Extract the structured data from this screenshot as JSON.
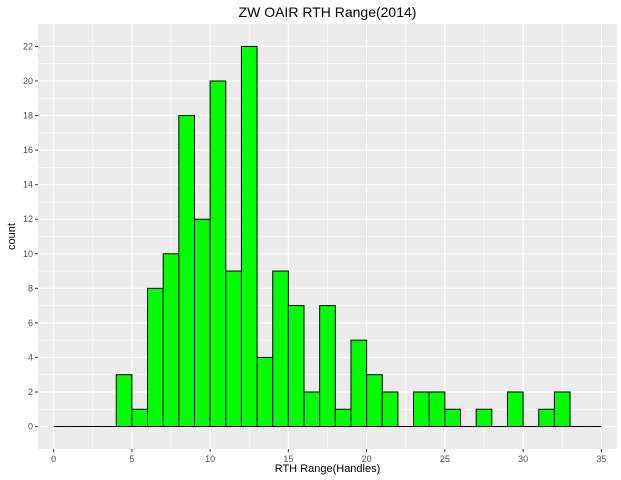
{
  "chart_data": {
    "type": "bar",
    "subtype": "histogram",
    "title": "ZW OAIR RTH Range(2014)",
    "xlabel": "RTH Range(Handles)",
    "ylabel": "count",
    "bin_width": 1,
    "bins": [
      {
        "x": 0,
        "count": 0
      },
      {
        "x": 1,
        "count": 0
      },
      {
        "x": 2,
        "count": 0
      },
      {
        "x": 3,
        "count": 0
      },
      {
        "x": 4,
        "count": 3
      },
      {
        "x": 5,
        "count": 1
      },
      {
        "x": 6,
        "count": 8
      },
      {
        "x": 7,
        "count": 10
      },
      {
        "x": 8,
        "count": 18
      },
      {
        "x": 9,
        "count": 12
      },
      {
        "x": 10,
        "count": 20
      },
      {
        "x": 11,
        "count": 9
      },
      {
        "x": 12,
        "count": 22
      },
      {
        "x": 13,
        "count": 4
      },
      {
        "x": 14,
        "count": 9
      },
      {
        "x": 15,
        "count": 7
      },
      {
        "x": 16,
        "count": 2
      },
      {
        "x": 17,
        "count": 7
      },
      {
        "x": 18,
        "count": 1
      },
      {
        "x": 19,
        "count": 5
      },
      {
        "x": 20,
        "count": 3
      },
      {
        "x": 21,
        "count": 2
      },
      {
        "x": 22,
        "count": 0
      },
      {
        "x": 23,
        "count": 2
      },
      {
        "x": 24,
        "count": 2
      },
      {
        "x": 25,
        "count": 1
      },
      {
        "x": 26,
        "count": 0
      },
      {
        "x": 27,
        "count": 1
      },
      {
        "x": 28,
        "count": 0
      },
      {
        "x": 29,
        "count": 2
      },
      {
        "x": 30,
        "count": 0
      },
      {
        "x": 31,
        "count": 1
      },
      {
        "x": 32,
        "count": 2
      },
      {
        "x": 33,
        "count": 0
      },
      {
        "x": 34,
        "count": 0
      }
    ],
    "xlim": [
      -1,
      36
    ],
    "ylim": [
      -1.3,
      23.3
    ],
    "x_ticks": [
      0,
      5,
      10,
      15,
      20,
      25,
      30,
      35
    ],
    "y_ticks": [
      0,
      2,
      4,
      6,
      8,
      10,
      12,
      14,
      16,
      18,
      20,
      22
    ],
    "grid": true,
    "legend": "none",
    "colors": {
      "bar_fill": "#00ff00",
      "bar_stroke": "#000000",
      "panel_bg": "#ebebeb",
      "grid": "#ffffff"
    }
  }
}
